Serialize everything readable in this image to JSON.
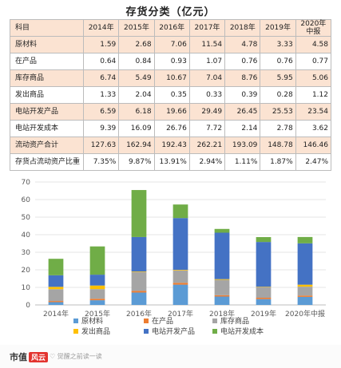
{
  "title": "存货分类（亿元）",
  "table": {
    "header": [
      "科目",
      "2014年",
      "2015年",
      "2016年",
      "2017年",
      "2018年",
      "2019年",
      "2020年中报"
    ],
    "rows": [
      [
        "原材料",
        "1.59",
        "2.68",
        "7.06",
        "11.54",
        "4.78",
        "3.33",
        "4.58"
      ],
      [
        "在产品",
        "0.64",
        "0.84",
        "0.93",
        "1.07",
        "0.76",
        "0.76",
        "0.77"
      ],
      [
        "库存商品",
        "6.74",
        "5.49",
        "10.67",
        "7.04",
        "8.76",
        "5.95",
        "5.06"
      ],
      [
        "发出商品",
        "1.33",
        "2.04",
        "0.35",
        "0.33",
        "0.39",
        "0.28",
        "1.12"
      ],
      [
        "电站开发产品",
        "6.59",
        "6.18",
        "19.66",
        "29.49",
        "26.45",
        "25.53",
        "23.54"
      ],
      [
        "电站开发成本",
        "9.39",
        "16.09",
        "26.76",
        "7.72",
        "2.14",
        "2.78",
        "3.62"
      ],
      [
        "流动资产合计",
        "127.63",
        "162.94",
        "192.43",
        "262.21",
        "193.09",
        "148.78",
        "146.46"
      ],
      [
        "存货占流动资产比重",
        "7.35%",
        "9.87%",
        "13.91%",
        "2.94%",
        "1.11%",
        "1.87%",
        "2.47%"
      ]
    ]
  },
  "chart_data": {
    "type": "bar",
    "stacked": true,
    "categories": [
      "2014年",
      "2015年",
      "2016年",
      "2017年",
      "2018年",
      "2019年",
      "2020年中报"
    ],
    "series": [
      {
        "name": "原材料",
        "color": "#5b9bd5",
        "values": [
          1.59,
          2.68,
          7.06,
          11.54,
          4.78,
          3.33,
          4.58
        ]
      },
      {
        "name": "在产品",
        "color": "#ed7d31",
        "values": [
          0.64,
          0.84,
          0.93,
          1.07,
          0.76,
          0.76,
          0.77
        ]
      },
      {
        "name": "库存商品",
        "color": "#a5a5a5",
        "values": [
          6.74,
          5.49,
          10.67,
          7.04,
          8.76,
          5.95,
          5.06
        ]
      },
      {
        "name": "发出商品",
        "color": "#ffc000",
        "values": [
          1.33,
          2.04,
          0.35,
          0.33,
          0.39,
          0.28,
          1.12
        ]
      },
      {
        "name": "电站开发产品",
        "color": "#4472c4",
        "values": [
          6.59,
          6.18,
          19.66,
          29.49,
          26.45,
          25.53,
          23.54
        ]
      },
      {
        "name": "电站开发成本",
        "color": "#70ad47",
        "values": [
          9.39,
          16.09,
          26.76,
          7.72,
          2.14,
          2.78,
          3.62
        ]
      }
    ],
    "ylim": [
      0,
      70
    ],
    "yticks": [
      0,
      10,
      20,
      30,
      40,
      50,
      60,
      70
    ],
    "grid": true,
    "legend": "bottom"
  },
  "footer": {
    "logo_text": "市值",
    "logo_badge": "风云",
    "fav_text": "♡ 觉醒之前读一读"
  }
}
